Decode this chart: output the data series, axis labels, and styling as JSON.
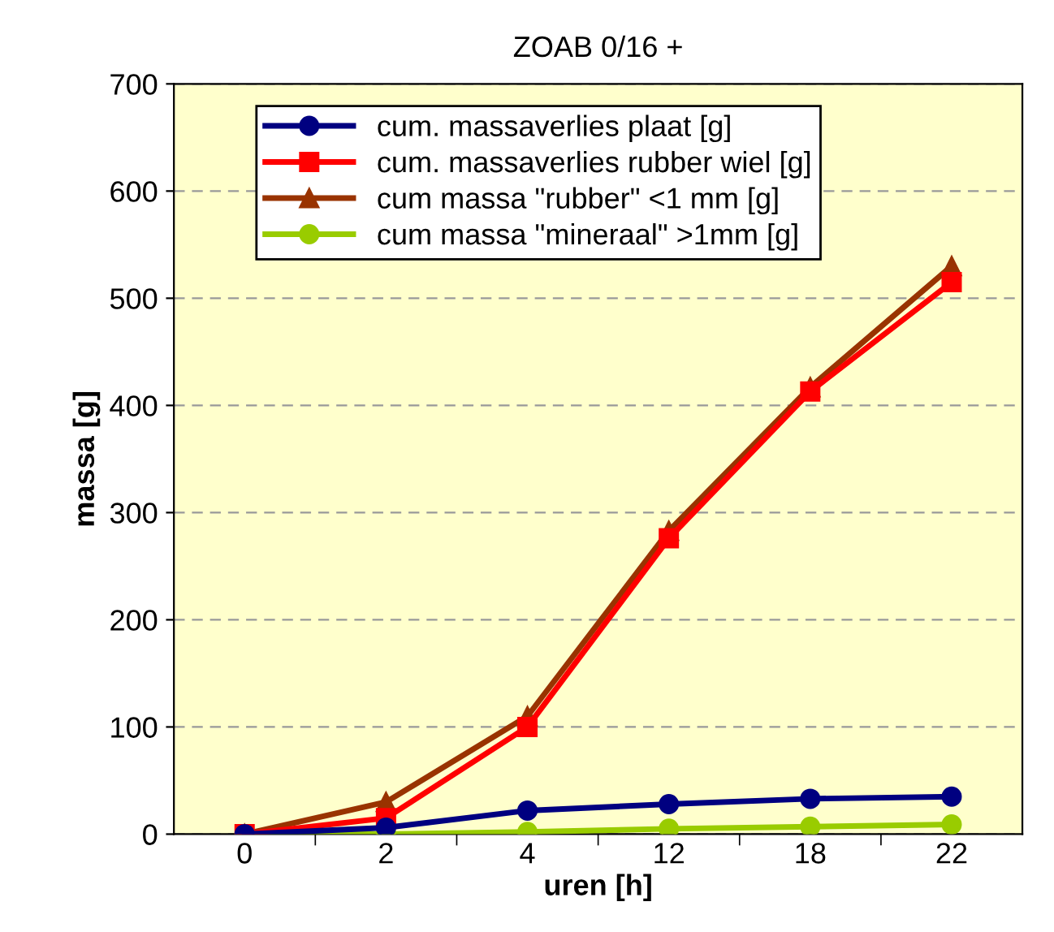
{
  "chart_data": {
    "type": "line",
    "title": "ZOAB 0/16 +",
    "xlabel": "uren [h]",
    "ylabel": "massa [g]",
    "categories": [
      "0",
      "2",
      "4",
      "12",
      "18",
      "22"
    ],
    "series": [
      {
        "name": "cum. massaverlies plaat [g]",
        "color": "#000080",
        "marker": "circle",
        "values": [
          0,
          6,
          22,
          28,
          33,
          35
        ]
      },
      {
        "name": "cum. massaverlies rubber wiel [g]",
        "color": "#ff0000",
        "marker": "square",
        "values": [
          0,
          15,
          100,
          276,
          413,
          515
        ]
      },
      {
        "name": "cum massa \"rubber\" <1 mm [g]",
        "color": "#993300",
        "marker": "triangle",
        "values": [
          0,
          30,
          110,
          283,
          417,
          530
        ]
      },
      {
        "name": "cum massa \"mineraal\" >1mm [g]",
        "color": "#99cc00",
        "marker": "circle",
        "values": [
          0,
          0,
          2,
          5,
          7,
          9
        ]
      }
    ],
    "ylim": [
      0,
      700
    ],
    "yticks": [
      0,
      100,
      200,
      300,
      400,
      500,
      600,
      700
    ],
    "grid": "y",
    "legend": "top left",
    "line_style": "solid"
  }
}
